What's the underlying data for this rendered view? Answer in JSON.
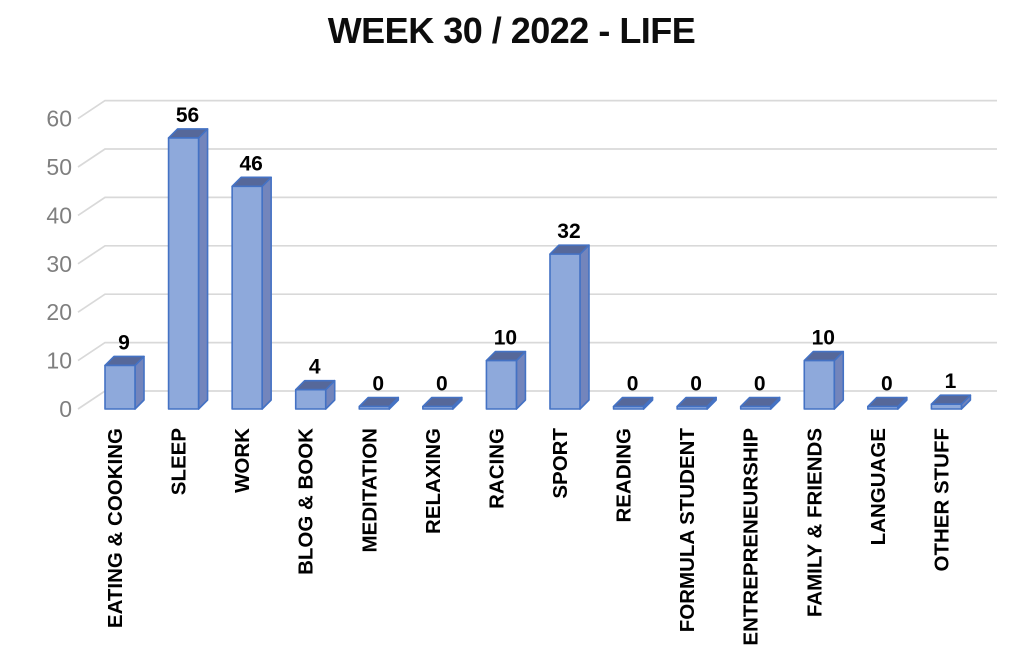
{
  "chart_data": {
    "type": "bar",
    "style": "3d-column",
    "title": "WEEK 30 / 2022 - LIFE",
    "categories": [
      "EATING & COOKING",
      "SLEEP",
      "WORK",
      "BLOG & BOOK",
      "MEDITATION",
      "RELAXING",
      "RACING",
      "SPORT",
      "READING",
      "FORMULA STUDENT",
      "ENTREPRENEURSHIP",
      "FAMILY & FRIENDS",
      "LANGUAGE",
      "OTHER STUFF"
    ],
    "values": [
      9,
      56,
      46,
      4,
      0,
      0,
      10,
      32,
      0,
      0,
      0,
      10,
      0,
      1
    ],
    "data_labels": [
      "9",
      "56",
      "46",
      "4",
      "0",
      "0",
      "10",
      "32",
      "0",
      "0",
      "0",
      "10",
      "0",
      "1"
    ],
    "y_ticks": [
      "0",
      "10",
      "20",
      "30",
      "40",
      "50",
      "60"
    ],
    "ylim": [
      0,
      60
    ],
    "xlabel": "",
    "ylabel": "",
    "grid": true,
    "legend": "none",
    "colors": {
      "bar_front": "#8EA9DB",
      "bar_side": "#7385BC",
      "bar_top": "#56689A",
      "bar_border": "#4472C4",
      "gridline": "#D9D9D9",
      "axis_text": "#7F7F7F",
      "label_text": "#000000",
      "title_text": "#0D0D0D",
      "background": "#FFFFFF"
    }
  }
}
